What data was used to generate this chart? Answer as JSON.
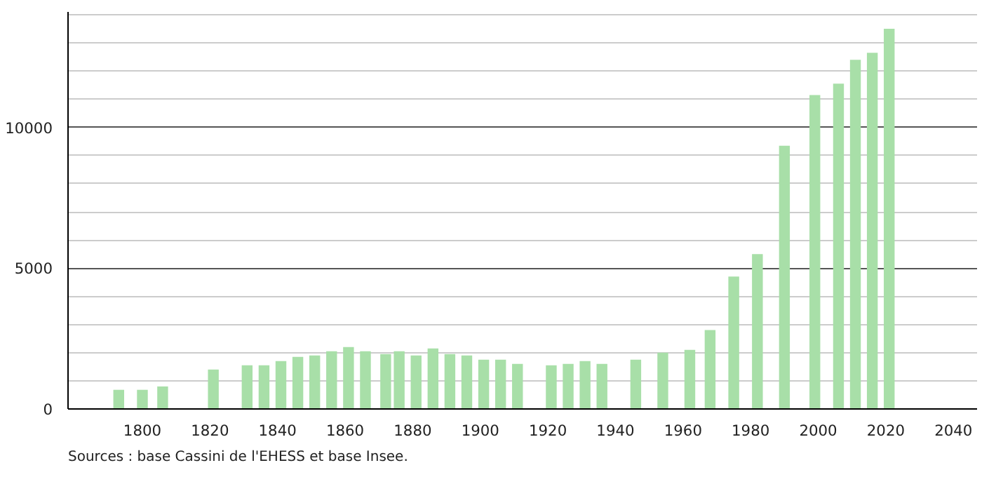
{
  "chart_data": {
    "type": "bar",
    "color": "#a8dfa8",
    "x": [
      1793,
      1800,
      1806,
      1821,
      1831,
      1836,
      1841,
      1846,
      1851,
      1856,
      1861,
      1866,
      1872,
      1876,
      1881,
      1886,
      1891,
      1896,
      1901,
      1906,
      1911,
      1921,
      1926,
      1931,
      1936,
      1946,
      1954,
      1962,
      1968,
      1975,
      1982,
      1990,
      1999,
      2006,
      2011,
      2016,
      2021
    ],
    "values": [
      680,
      680,
      800,
      1400,
      1550,
      1550,
      1700,
      1850,
      1900,
      2050,
      2200,
      2050,
      1950,
      2050,
      1900,
      2150,
      1950,
      1900,
      1750,
      1750,
      1600,
      1550,
      1600,
      1700,
      1600,
      1750,
      2000,
      2100,
      2800,
      4700,
      5500,
      9350,
      11150,
      11550,
      12400,
      12650,
      13500
    ],
    "xlim": [
      1778,
      2047
    ],
    "ylim": [
      0,
      14100
    ],
    "xticks": [
      1800,
      1820,
      1840,
      1860,
      1880,
      1900,
      1920,
      1940,
      1960,
      1980,
      2000,
      2020,
      2040
    ],
    "yticks": [
      0,
      {
        "value": 1000,
        "label": null
      },
      {
        "value": 2000,
        "label": null
      },
      {
        "value": 3000,
        "label": null
      },
      {
        "value": 4000,
        "label": null
      },
      5000,
      {
        "value": 6000,
        "label": null
      },
      {
        "value": 7000,
        "label": null
      },
      {
        "value": 8000,
        "label": null
      },
      {
        "value": 9000,
        "label": null
      },
      10000,
      {
        "value": 11000,
        "label": null
      },
      {
        "value": 12000,
        "label": null
      },
      {
        "value": 13000,
        "label": null
      },
      {
        "value": 14000,
        "label": null
      }
    ],
    "grid": "y",
    "annotations": [
      "Sources : base Cassini de l'EHESS et base Insee."
    ]
  }
}
